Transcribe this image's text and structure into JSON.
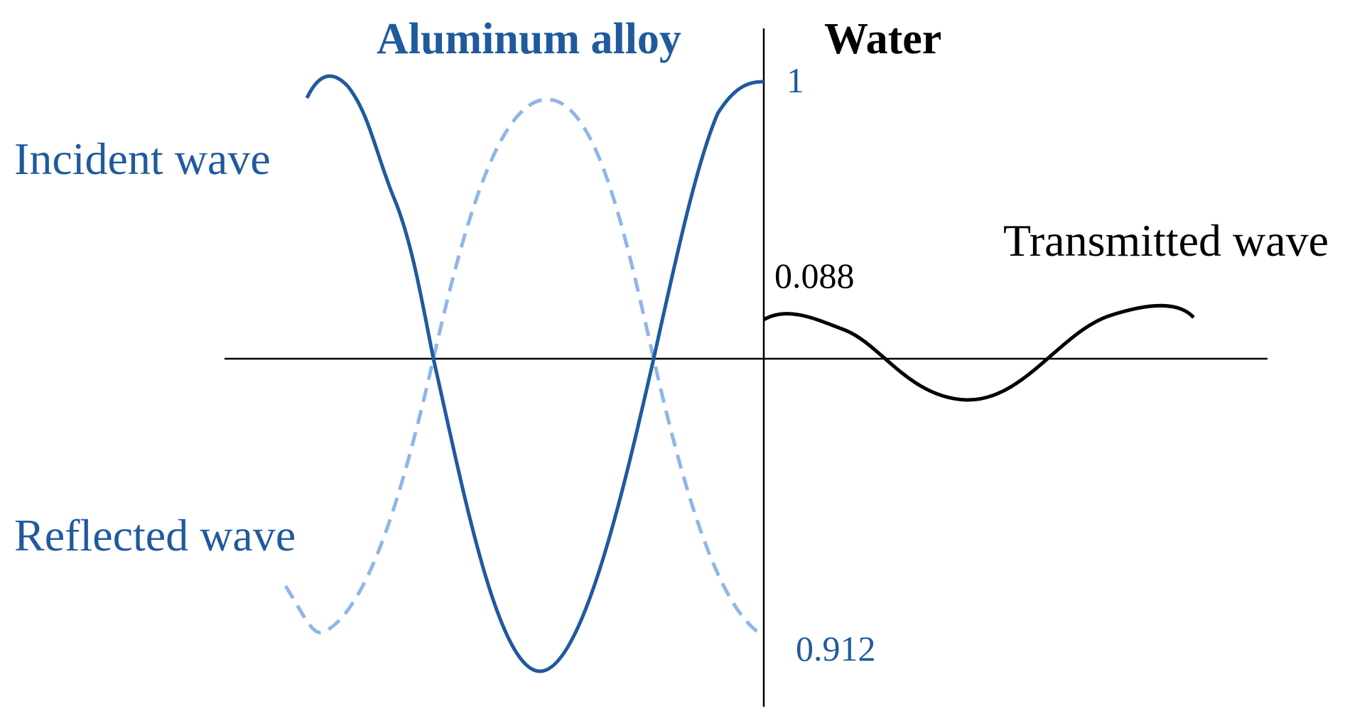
{
  "media": {
    "left": "Aluminum alloy",
    "right": "Water"
  },
  "waves": {
    "incident": "Incident wave",
    "reflected": "Reflected wave",
    "transmitted": "Transmitted wave"
  },
  "amplitudes": {
    "incident": "1",
    "reflected": "0.912",
    "transmitted": "0.088"
  },
  "colors": {
    "incident": "#1f5a9e",
    "reflected": "#8fb6e8",
    "transmitted": "#000000",
    "axes": "#000000"
  }
}
